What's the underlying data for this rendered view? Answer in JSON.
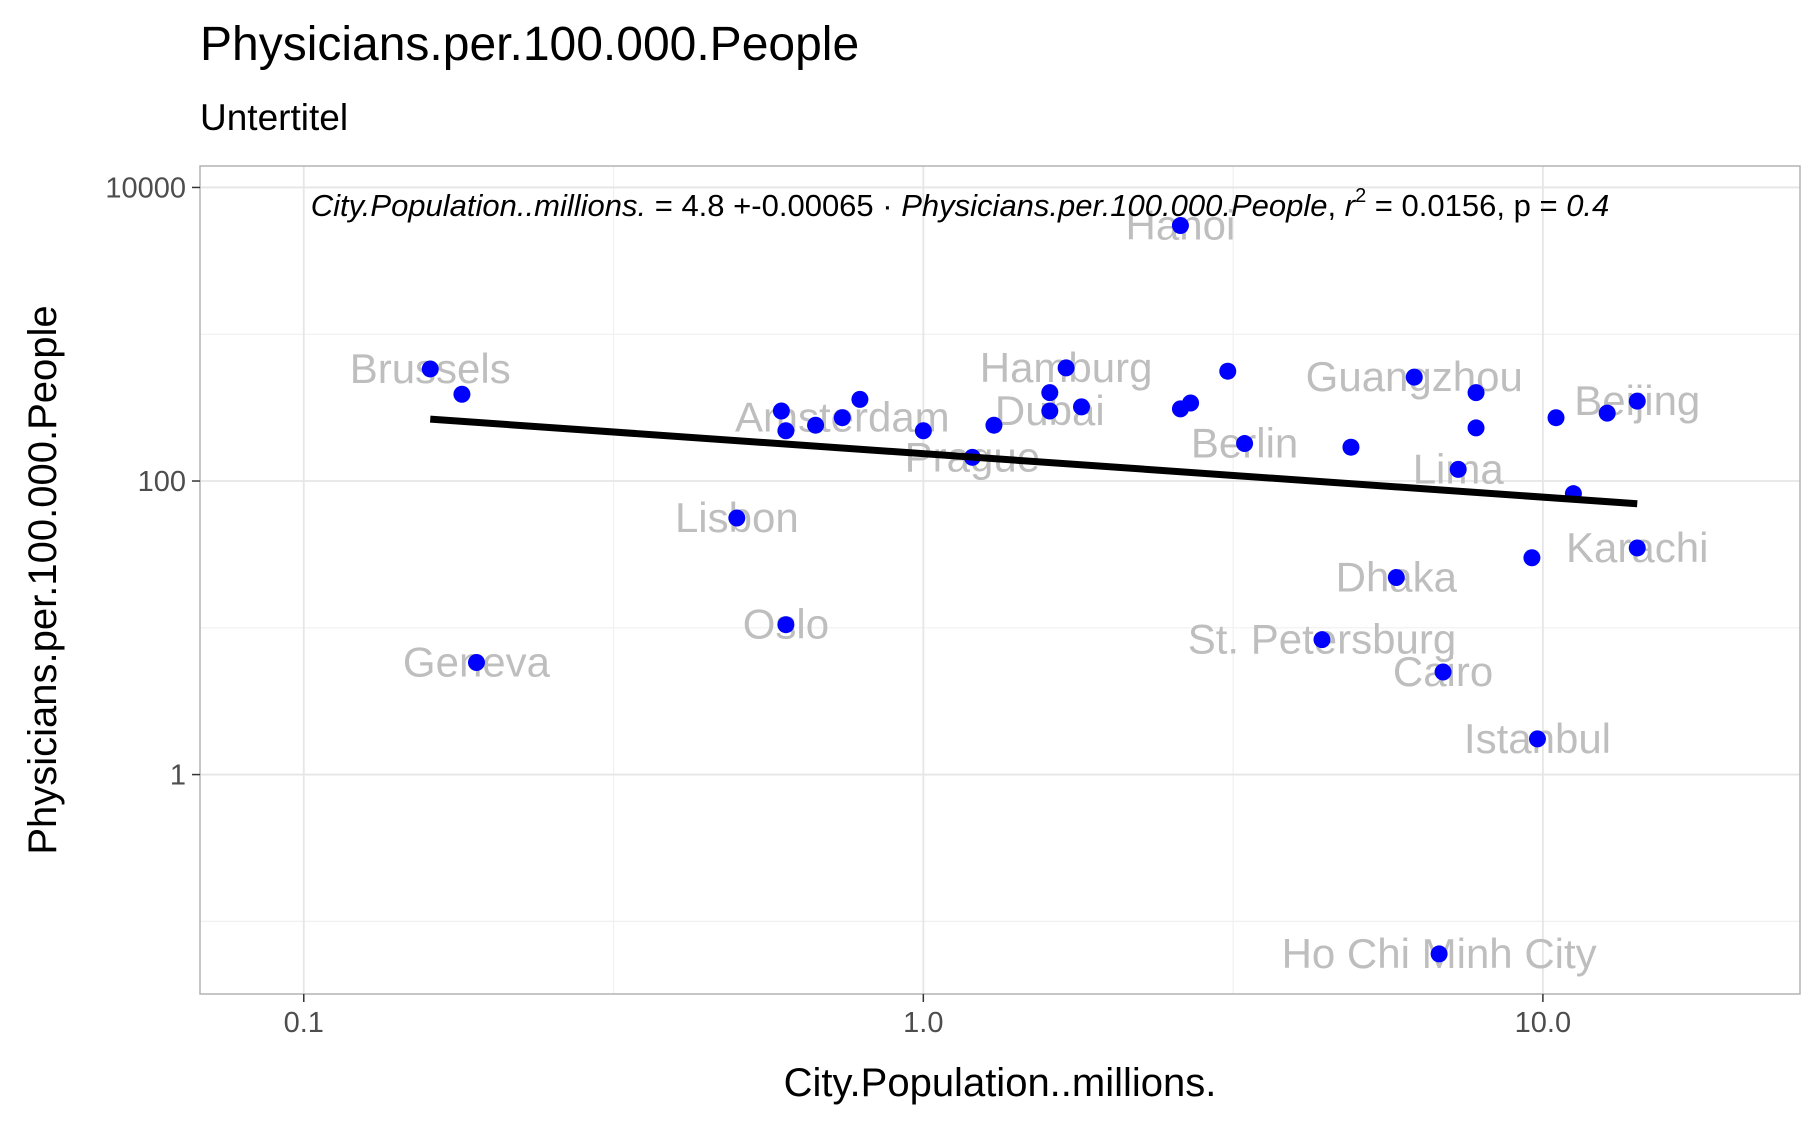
{
  "chart_data": {
    "type": "scatter",
    "title": "Physicians.per.100.000.People",
    "subtitle": "Untertitel",
    "xlabel": "City.Population..millions.",
    "ylabel": "Physicians.per.100.000.People",
    "x_scale": "log10",
    "y_scale": "log10",
    "xlim": [
      0.068,
      26
    ],
    "ylim": [
      0.032,
      14000
    ],
    "x_ticks": [
      0.1,
      1.0,
      10.0
    ],
    "x_tick_labels": [
      "0.1",
      "1.0",
      "10.0"
    ],
    "y_ticks": [
      1,
      100,
      10000
    ],
    "y_tick_labels": [
      "1",
      "100",
      "10000"
    ],
    "grid": true,
    "legend": "none",
    "point_color": "#0000ff",
    "line_color": "#000000",
    "label_color": "#bebebe",
    "points": [
      {
        "x": 0.16,
        "y": 580,
        "label": "Brussels"
      },
      {
        "x": 0.18,
        "y": 390,
        "label": ""
      },
      {
        "x": 0.19,
        "y": 5.8,
        "label": "Geneva"
      },
      {
        "x": 0.5,
        "y": 56,
        "label": "Lisbon"
      },
      {
        "x": 0.6,
        "y": 10.5,
        "label": "Oslo"
      },
      {
        "x": 0.59,
        "y": 300,
        "label": ""
      },
      {
        "x": 0.6,
        "y": 220,
        "label": ""
      },
      {
        "x": 0.67,
        "y": 240,
        "label": ""
      },
      {
        "x": 0.74,
        "y": 270,
        "label": "Amsterdam"
      },
      {
        "x": 0.79,
        "y": 360,
        "label": ""
      },
      {
        "x": 1.0,
        "y": 220,
        "label": ""
      },
      {
        "x": 1.2,
        "y": 145,
        "label": "Prague"
      },
      {
        "x": 1.3,
        "y": 240,
        "label": ""
      },
      {
        "x": 1.6,
        "y": 400,
        "label": ""
      },
      {
        "x": 1.6,
        "y": 300,
        "label": "Dubai"
      },
      {
        "x": 1.7,
        "y": 590,
        "label": "Hamburg"
      },
      {
        "x": 1.8,
        "y": 320,
        "label": ""
      },
      {
        "x": 2.6,
        "y": 5500,
        "label": "Hanoi"
      },
      {
        "x": 2.6,
        "y": 310,
        "label": ""
      },
      {
        "x": 2.7,
        "y": 340,
        "label": ""
      },
      {
        "x": 3.1,
        "y": 560,
        "label": ""
      },
      {
        "x": 3.3,
        "y": 180,
        "label": "Berlin"
      },
      {
        "x": 4.4,
        "y": 8.3,
        "label": "St. Petersburg"
      },
      {
        "x": 4.9,
        "y": 170,
        "label": ""
      },
      {
        "x": 5.8,
        "y": 22,
        "label": "Dhaka"
      },
      {
        "x": 6.2,
        "y": 510,
        "label": "Guangzhou"
      },
      {
        "x": 6.8,
        "y": 0.06,
        "label": "Ho Chi Minh City"
      },
      {
        "x": 6.9,
        "y": 5,
        "label": "Cairo"
      },
      {
        "x": 7.3,
        "y": 120,
        "label": "Lima"
      },
      {
        "x": 7.8,
        "y": 400,
        "label": ""
      },
      {
        "x": 7.8,
        "y": 230,
        "label": ""
      },
      {
        "x": 9.6,
        "y": 30,
        "label": ""
      },
      {
        "x": 9.8,
        "y": 1.75,
        "label": "Istanbul"
      },
      {
        "x": 10.5,
        "y": 270,
        "label": ""
      },
      {
        "x": 11.2,
        "y": 82,
        "label": ""
      },
      {
        "x": 12.7,
        "y": 290,
        "label": ""
      },
      {
        "x": 14.2,
        "y": 35,
        "label": "Karachi"
      },
      {
        "x": 14.2,
        "y": 350,
        "label": "Beijing"
      }
    ],
    "fit_line": {
      "x": [
        0.16,
        14.2
      ],
      "y": [
        264,
        70
      ]
    },
    "equation": {
      "lhs": "City.Population..millions.",
      "intercept": "4.8",
      "operator": "+",
      "slope": "-0.00065",
      "dot": "·",
      "term": "Physicians.per.100.000.People",
      "r_symbol": "r",
      "r_exp": "2",
      "r_value": "0.0156",
      "p_label": "p",
      "p_value": "0.4"
    }
  }
}
